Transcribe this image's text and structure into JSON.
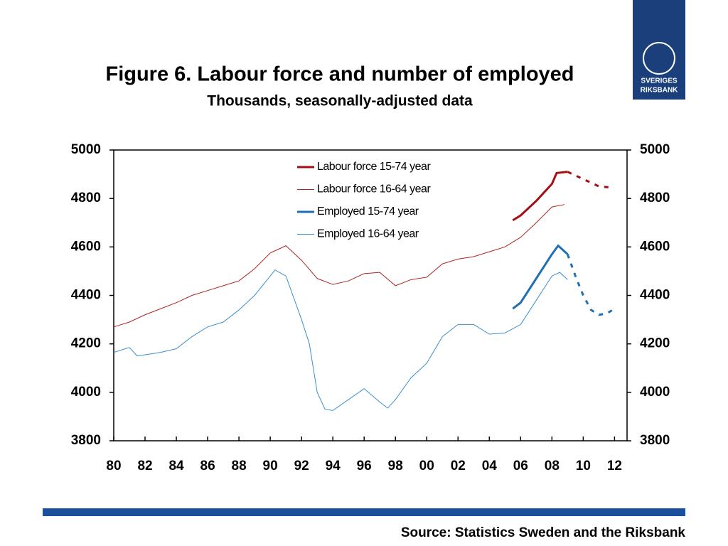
{
  "chart_data": {
    "type": "line",
    "title": "Figure 6. Labour force and number of employed",
    "subtitle": "Thousands, seasonally-adjusted data",
    "source": "Source: Statistics Sweden and the Riksbank",
    "xlim": [
      1980,
      2012.8
    ],
    "xticks": [
      {
        "value": 1980,
        "label": "80"
      },
      {
        "value": 1982,
        "label": "82"
      },
      {
        "value": 1984,
        "label": "84"
      },
      {
        "value": 1986,
        "label": "86"
      },
      {
        "value": 1988,
        "label": "88"
      },
      {
        "value": 1990,
        "label": "90"
      },
      {
        "value": 1992,
        "label": "92"
      },
      {
        "value": 1994,
        "label": "94"
      },
      {
        "value": 1996,
        "label": "96"
      },
      {
        "value": 1998,
        "label": "98"
      },
      {
        "value": 2000,
        "label": "00"
      },
      {
        "value": 2002,
        "label": "02"
      },
      {
        "value": 2004,
        "label": "04"
      },
      {
        "value": 2006,
        "label": "06"
      },
      {
        "value": 2008,
        "label": "08"
      },
      {
        "value": 2010,
        "label": "10"
      },
      {
        "value": 2012,
        "label": "12"
      }
    ],
    "ylim": [
      3800,
      5000
    ],
    "yticks": [
      3800,
      4000,
      4200,
      4400,
      4600,
      4800,
      5000
    ],
    "y2lim": [
      3800,
      5000
    ],
    "y2ticks": [
      3800,
      4000,
      4200,
      4400,
      4600,
      4800,
      5000
    ],
    "grid": false,
    "legend": "top",
    "series": [
      {
        "name": "Labour force 15-74 year",
        "color": "#a50f15",
        "width": 3,
        "dashed_after": 2009,
        "x": [
          2005.5,
          2006,
          2007,
          2008,
          2008.3,
          2009,
          2010,
          2011,
          2011.8
        ],
        "values": [
          4710,
          4730,
          4790,
          4860,
          4905,
          4910,
          4880,
          4850,
          4845
        ]
      },
      {
        "name": "Labour force 16-64 year",
        "color": "#b22222",
        "width": 1,
        "x": [
          1980,
          1981,
          1982,
          1983,
          1984,
          1985,
          1986,
          1987,
          1988,
          1989,
          1990,
          1990.5,
          1991,
          1992,
          1993,
          1994,
          1995,
          1996,
          1997,
          1998,
          1999,
          2000,
          2001,
          2002,
          2003,
          2004,
          2005,
          2006,
          2007,
          2008,
          2008.8
        ],
        "values": [
          4270,
          4290,
          4320,
          4345,
          4370,
          4400,
          4420,
          4440,
          4460,
          4510,
          4575,
          4590,
          4605,
          4545,
          4470,
          4445,
          4460,
          4490,
          4495,
          4440,
          4465,
          4475,
          4530,
          4550,
          4560,
          4580,
          4600,
          4640,
          4700,
          4765,
          4775
        ]
      },
      {
        "name": "Employed 15-74 year",
        "color": "#1f6fb5",
        "width": 3,
        "dashed_after": 2009,
        "x": [
          2005.5,
          2006,
          2007,
          2008,
          2008.4,
          2009,
          2009.5,
          2010,
          2010.5,
          2011,
          2011.5,
          2012
        ],
        "values": [
          4345,
          4370,
          4470,
          4570,
          4605,
          4570,
          4480,
          4400,
          4340,
          4320,
          4325,
          4345
        ]
      },
      {
        "name": "Employed 16-64 year",
        "color": "#3a8fd0",
        "width": 1,
        "x": [
          1980,
          1981,
          1981.5,
          1982,
          1983,
          1984,
          1985,
          1986,
          1987,
          1988,
          1989,
          1990,
          1990.3,
          1991,
          1992,
          1992.5,
          1993,
          1993.5,
          1994,
          1995,
          1996,
          1997,
          1997.5,
          1998,
          1999,
          2000,
          2001,
          2002,
          2003,
          2004,
          2005,
          2006,
          2007,
          2008,
          2008.5,
          2009
        ],
        "values": [
          4165,
          4185,
          4150,
          4155,
          4165,
          4180,
          4230,
          4270,
          4290,
          4340,
          4400,
          4480,
          4505,
          4480,
          4300,
          4200,
          4000,
          3930,
          3925,
          3970,
          4015,
          3960,
          3935,
          3970,
          4060,
          4120,
          4230,
          4280,
          4280,
          4240,
          4245,
          4280,
          4380,
          4480,
          4495,
          4465
        ]
      }
    ]
  },
  "logo": {
    "line1": "SVERIGES",
    "line2": "RIKSBANK"
  }
}
